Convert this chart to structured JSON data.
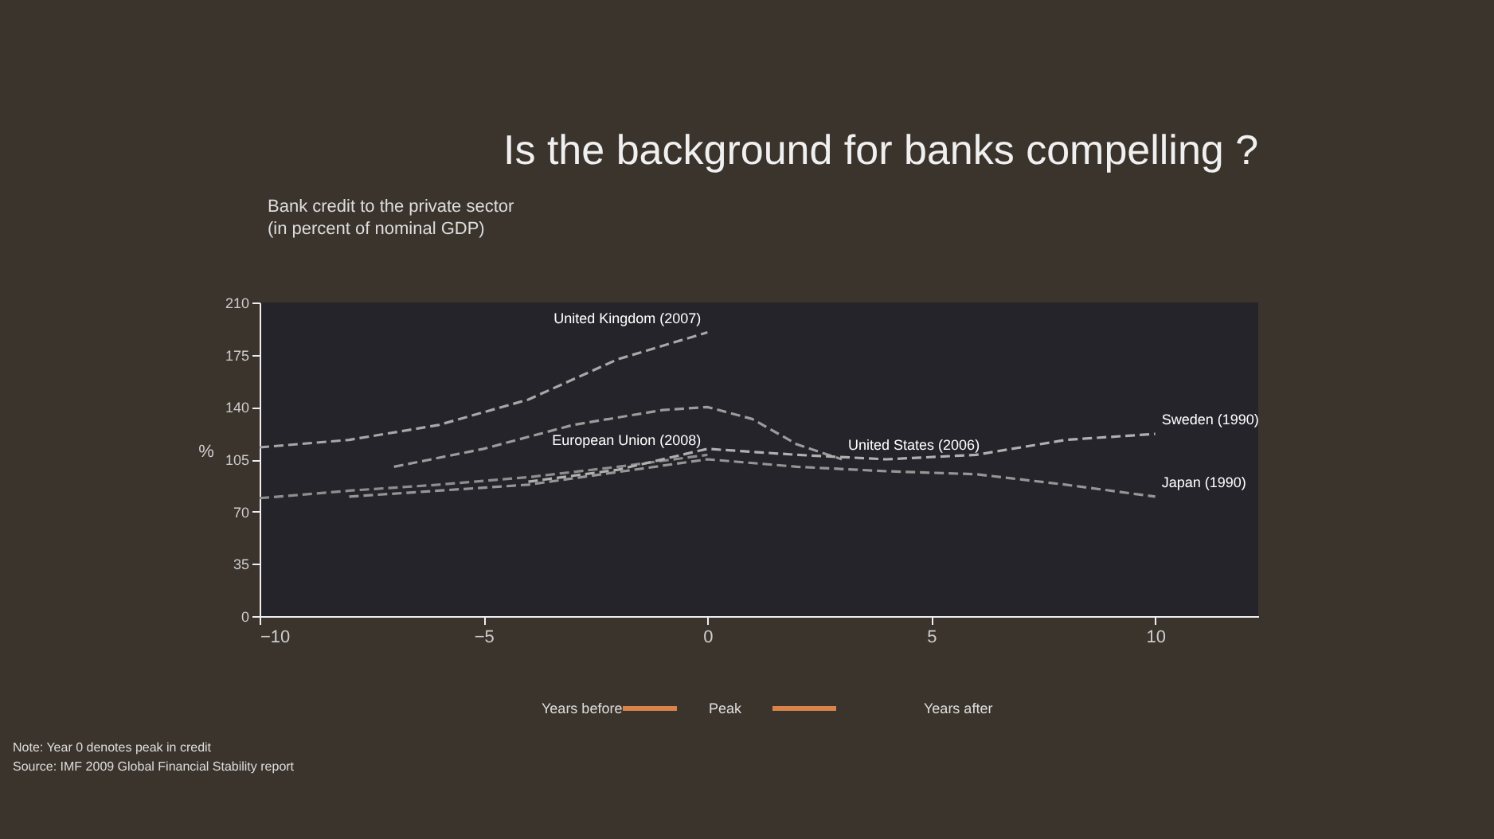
{
  "chart_data": {
    "type": "line",
    "title": "Is the background for banks compelling ?",
    "subtitle": "Bank credit to the private sector\n(in percent of nominal GDP)",
    "ylabel": "%",
    "xlim": [
      -10,
      12.3
    ],
    "xticks": [
      -10,
      -5,
      0,
      5,
      10
    ],
    "ylim": [
      0,
      210
    ],
    "yticks": [
      0,
      35,
      70,
      105,
      140,
      175,
      210
    ],
    "grid": false,
    "legend": false,
    "line_style": "dashed",
    "marker": "none",
    "series": [
      {
        "name": "United Kingdom (2007)",
        "color": "#a8a8a8",
        "x": [
          -10,
          -8,
          -6,
          -4,
          -2,
          0
        ],
        "values": [
          113,
          118,
          128,
          145,
          172,
          190
        ]
      },
      {
        "name": "United States (2006)",
        "color": "#9c9c9c",
        "x": [
          -7,
          -5,
          -3,
          -1,
          0,
          1,
          2,
          3
        ],
        "values": [
          100,
          112,
          128,
          138,
          140,
          132,
          115,
          105
        ]
      },
      {
        "name": "European Union (2008)",
        "color": "#8e8e8e",
        "x": [
          -10,
          -8,
          -6,
          -4,
          -2,
          0
        ],
        "values": [
          79,
          84,
          88,
          93,
          100,
          108
        ]
      },
      {
        "name": "Sweden (1990)",
        "color": "#b0b0b0",
        "x": [
          -4,
          -2,
          0,
          2,
          4,
          6,
          8,
          10
        ],
        "values": [
          90,
          98,
          112,
          108,
          105,
          108,
          118,
          122
        ]
      },
      {
        "name": "Japan (1990)",
        "color": "#969696",
        "x": [
          -8,
          -4,
          0,
          2,
          4,
          6,
          8,
          10
        ],
        "values": [
          80,
          88,
          105,
          100,
          97,
          95,
          88,
          80
        ]
      }
    ],
    "annotations": [
      "Years before",
      "Peak",
      "Years after",
      "Note: Year 0 denotes peak in credit",
      "Source: IMF 2009 Global Financial Stability report"
    ]
  }
}
